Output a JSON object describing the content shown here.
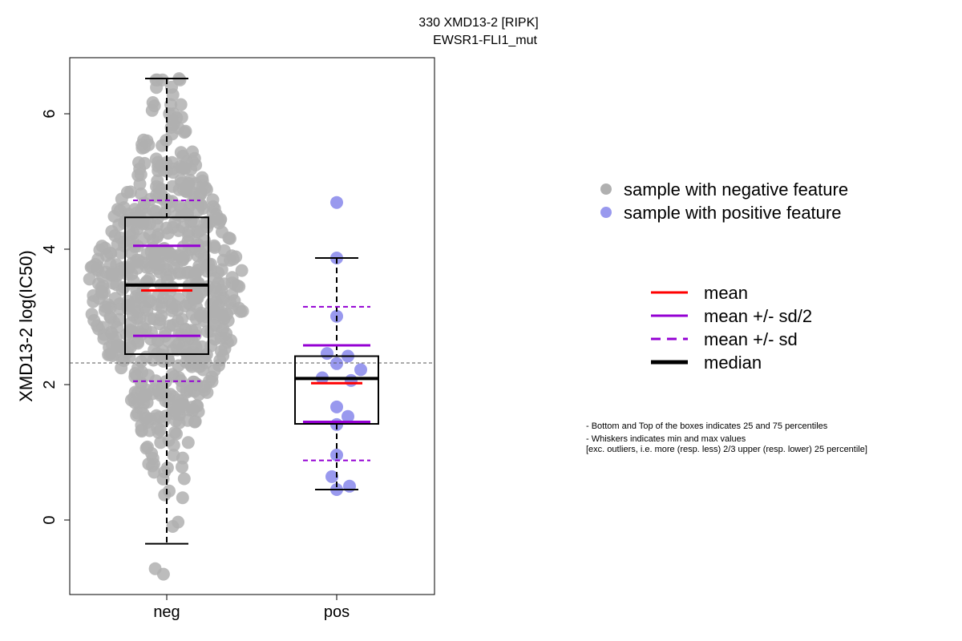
{
  "chart_data": {
    "type": "boxplot-beeswarm",
    "title_line1": "330 XMD13-2 [RIPK]",
    "title_line2": "EWSR1-FLI1_mut",
    "ylabel": "XMD13-2 log(IC50)",
    "ylim": [
      -1.1,
      6.8
    ],
    "yticks": [
      0,
      2,
      4,
      6
    ],
    "reference_line_y": 2.32,
    "groups": [
      {
        "name": "neg",
        "color": "#b0b0b0",
        "whisker_low": -0.35,
        "q1": 2.45,
        "median": 3.47,
        "q3": 4.47,
        "whisker_high": 6.52,
        "mean": 3.39,
        "mean_minus_half_sd": 2.72,
        "mean_plus_half_sd": 4.05,
        "mean_minus_sd": 2.05,
        "mean_plus_sd": 4.72,
        "sample_count": 700
      },
      {
        "name": "pos",
        "color": "#9999ee",
        "whisker_low": 0.45,
        "q1": 1.42,
        "median": 2.09,
        "q3": 2.42,
        "whisker_high": 3.87,
        "mean": 2.02,
        "mean_minus_half_sd": 1.45,
        "mean_plus_half_sd": 2.58,
        "mean_minus_sd": 0.88,
        "mean_plus_sd": 3.15,
        "points": [
          4.69,
          3.87,
          3.01,
          2.46,
          2.42,
          2.31,
          2.22,
          2.1,
          2.06,
          1.67,
          1.53,
          1.41,
          0.96,
          0.64,
          0.5,
          0.45
        ]
      }
    ],
    "legend_points": [
      {
        "label": "sample with negative feature",
        "color": "#b0b0b0"
      },
      {
        "label": "sample with positive feature",
        "color": "#9999ee"
      }
    ],
    "legend_lines": [
      {
        "label": "mean",
        "color": "#ff0000",
        "style": "solid"
      },
      {
        "label": "mean +/- sd/2",
        "color": "#9400d3",
        "style": "solid"
      },
      {
        "label": "mean +/- sd",
        "color": "#9400d3",
        "style": "dashed"
      },
      {
        "label": "median",
        "color": "#000000",
        "style": "thick"
      }
    ],
    "notes": [
      "- Bottom and Top of the boxes indicates 25 and 75 percentiles",
      "- Whiskers indicates min and max values",
      "[exc. outliers, i.e. more (resp. less) 2/3 upper (resp. lower) 25 percentile]"
    ]
  }
}
